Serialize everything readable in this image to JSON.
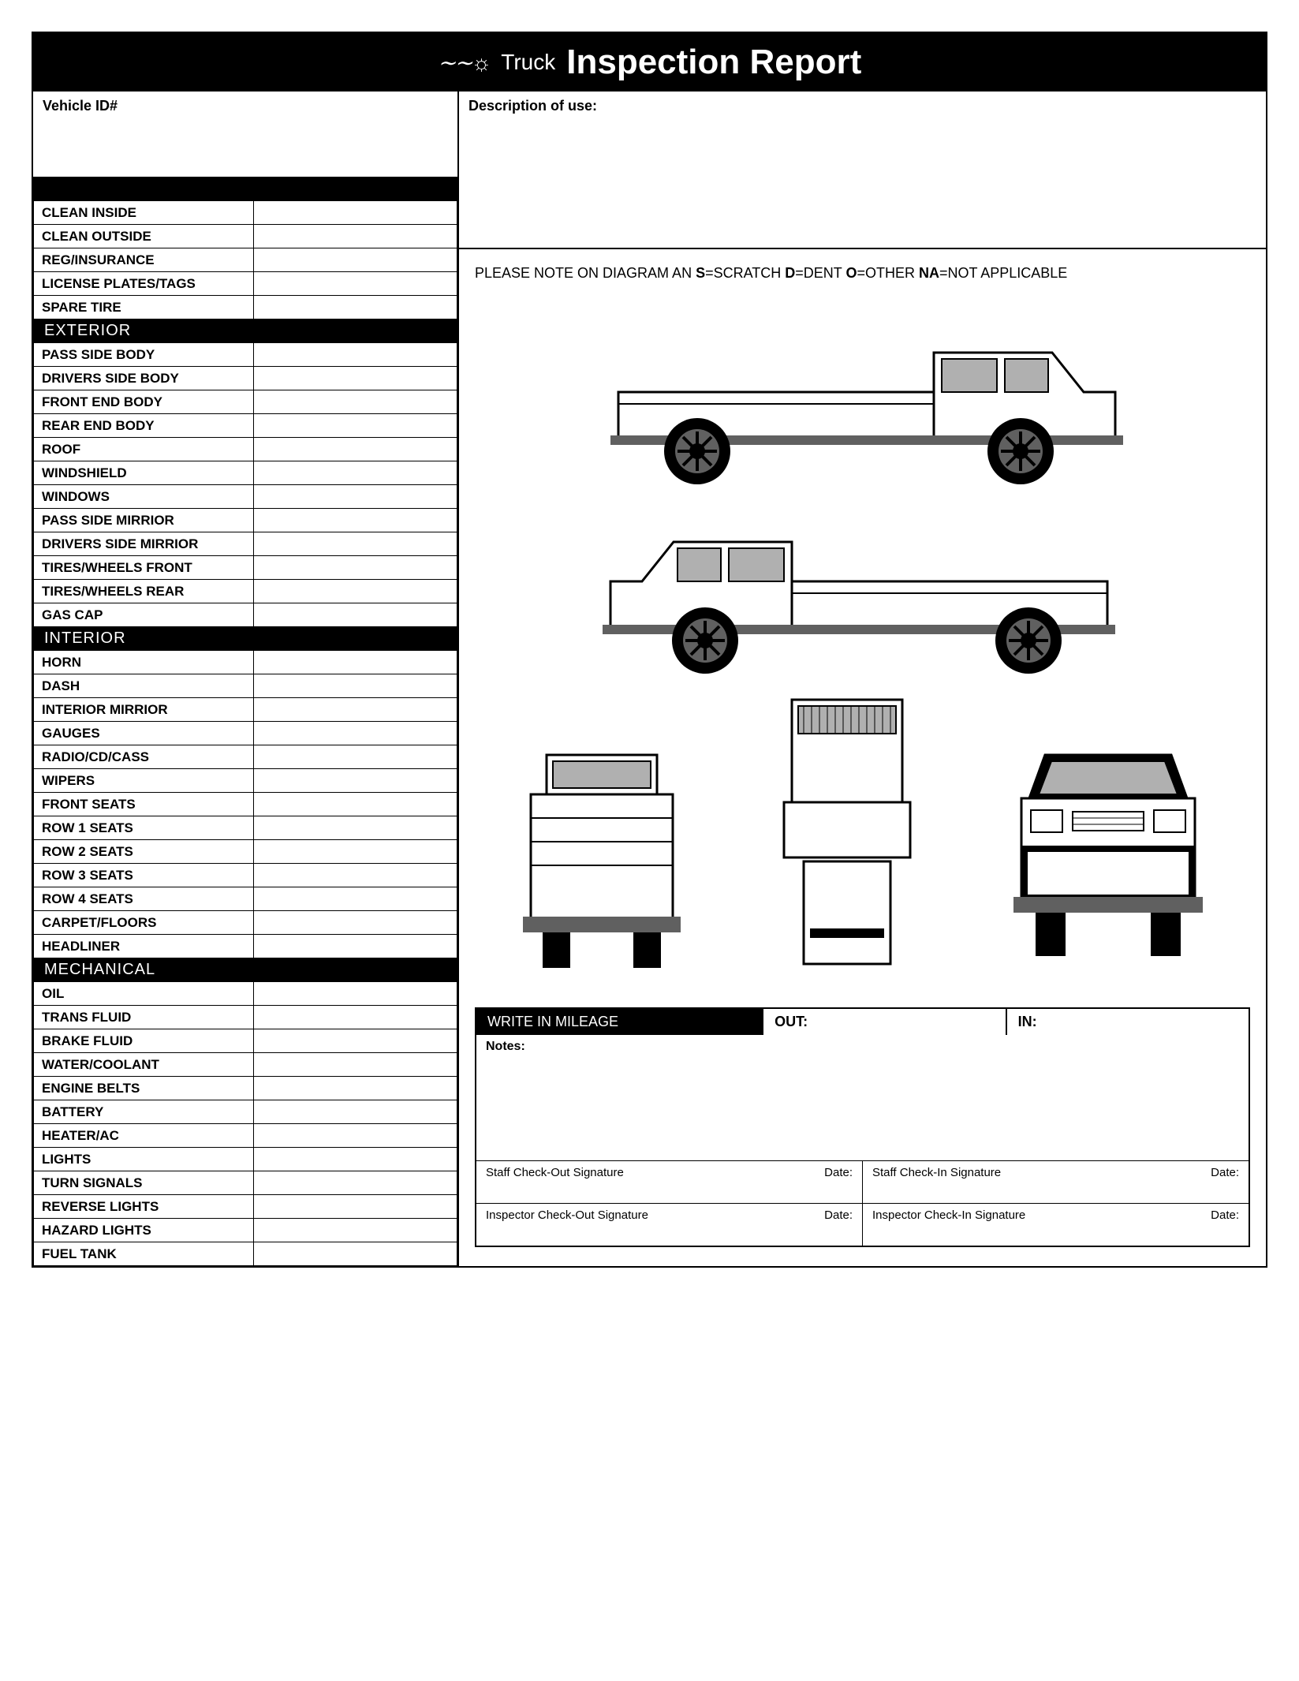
{
  "title": {
    "logo_text": "∼∼☼",
    "truck": "Truck",
    "report": "Inspection Report"
  },
  "header": {
    "vehicle_id_label": "Vehicle ID#",
    "description_label": "Description of use:"
  },
  "diagram_note": {
    "prefix": "PLEASE NOTE ON DIAGRAM AN ",
    "s": "S",
    "s_val": "=SCRATCH ",
    "d": "D",
    "d_val": "=DENT ",
    "o": "O",
    "o_val": "=OTHER ",
    "na": "NA",
    "na_val": "=NOT APPLICABLE"
  },
  "sections": {
    "general": {
      "items": [
        "CLEAN INSIDE",
        "CLEAN OUTSIDE",
        "REG/INSURANCE",
        "LICENSE PLATES/TAGS",
        "SPARE TIRE"
      ]
    },
    "exterior": {
      "title": "EXTERIOR",
      "items": [
        "PASS SIDE BODY",
        "DRIVERS SIDE BODY",
        "FRONT END BODY",
        "REAR END BODY",
        "ROOF",
        "WINDSHIELD",
        "WINDOWS",
        "PASS SIDE MIRRIOR",
        "DRIVERS SIDE MIRRIOR",
        "TIRES/WHEELS FRONT",
        "TIRES/WHEELS REAR",
        "GAS CAP"
      ]
    },
    "interior": {
      "title": "INTERIOR",
      "items": [
        "HORN",
        "DASH",
        "INTERIOR MIRRIOR",
        "GAUGES",
        "RADIO/CD/CASS",
        "WIPERS",
        "FRONT SEATS",
        "ROW 1 SEATS",
        "ROW 2 SEATS",
        "ROW 3 SEATS",
        "ROW 4 SEATS",
        "CARPET/FLOORS",
        "HEADLINER"
      ]
    },
    "mechanical": {
      "title": "MECHANICAL",
      "items": [
        "OIL",
        "TRANS FLUID",
        "BRAKE FLUID",
        "WATER/COOLANT",
        "ENGINE BELTS",
        "BATTERY",
        "HEATER/AC",
        "LIGHTS",
        "TURN SIGNALS",
        "REVERSE LIGHTS",
        "HAZARD LIGHTS",
        "FUEL TANK"
      ]
    }
  },
  "mileage": {
    "label": "WRITE IN MILEAGE",
    "out": "OUT:",
    "in": "IN:",
    "notes": "Notes:"
  },
  "signatures": {
    "staff_out": "Staff Check-Out Signature",
    "staff_in": "Staff Check-In Signature",
    "inspector_out": "Inspector Check-Out Signature",
    "inspector_in": "Inspector Check-In Signature",
    "date": "Date:"
  },
  "colors": {
    "black": "#000000",
    "white": "#ffffff",
    "window_gray": "#b0b0b0",
    "tire_gray": "#606060"
  }
}
